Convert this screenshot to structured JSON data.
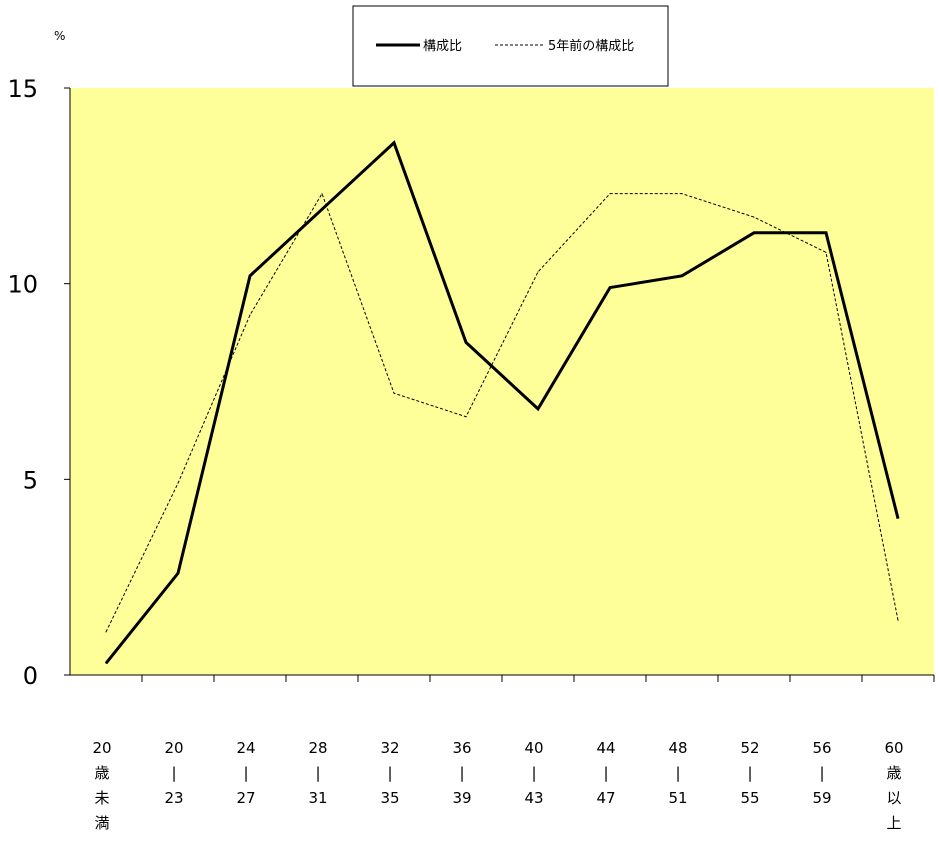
{
  "chart_data": {
    "type": "line",
    "y_unit_label": "%",
    "ylim": [
      0,
      15
    ],
    "y_ticks": [
      0,
      5,
      10,
      15
    ],
    "grid": false,
    "legend_position": "top-center",
    "plot_background": "#FFFF99",
    "categories": [
      [
        "20",
        "歳",
        "未",
        "満"
      ],
      [
        "20",
        "|",
        "23"
      ],
      [
        "24",
        "|",
        "27"
      ],
      [
        "28",
        "|",
        "31"
      ],
      [
        "32",
        "|",
        "35"
      ],
      [
        "36",
        "|",
        "39"
      ],
      [
        "40",
        "|",
        "43"
      ],
      [
        "44",
        "|",
        "47"
      ],
      [
        "48",
        "|",
        "51"
      ],
      [
        "52",
        "|",
        "55"
      ],
      [
        "56",
        "|",
        "59"
      ],
      [
        "60",
        "歳",
        "以",
        "上"
      ]
    ],
    "series": [
      {
        "name": "構成比",
        "style": "solid",
        "color": "#000000",
        "values": [
          0.3,
          2.6,
          10.2,
          11.9,
          13.6,
          8.5,
          6.8,
          9.9,
          10.2,
          11.3,
          11.3,
          4.0
        ]
      },
      {
        "name": "5年前の構成比",
        "style": "dashed",
        "color": "#000000",
        "values": [
          1.1,
          4.9,
          9.2,
          12.3,
          7.2,
          6.6,
          10.3,
          12.3,
          12.3,
          11.7,
          10.8,
          1.4
        ]
      }
    ]
  }
}
